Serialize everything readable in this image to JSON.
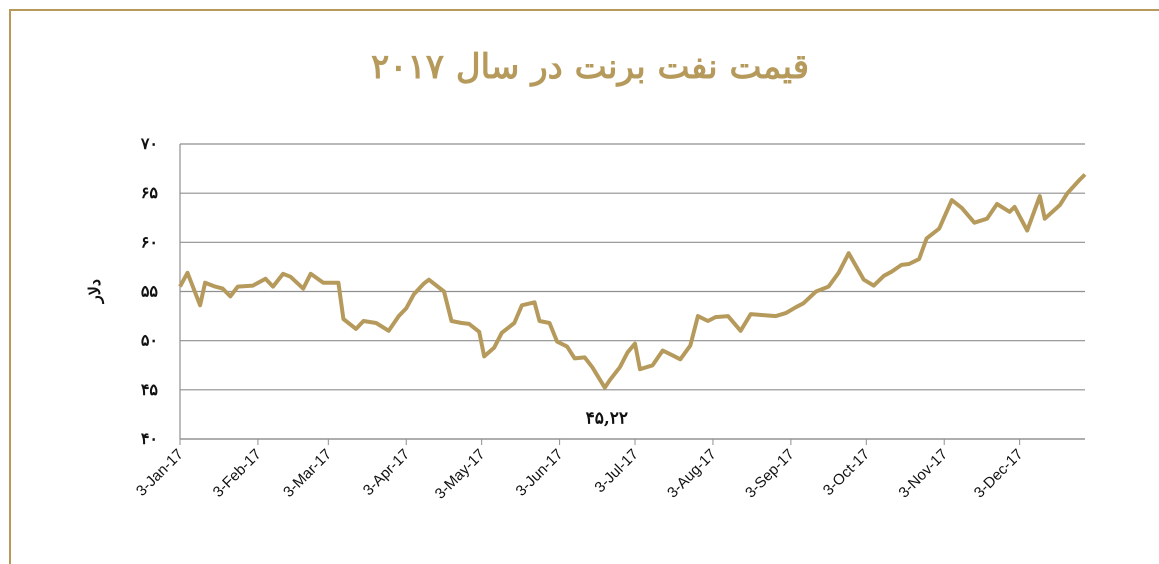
{
  "chart_data": {
    "type": "line",
    "title": "قیمت نفت برنت در سال ۲۰۱۷",
    "y_label": "دلار",
    "annotation": "۴۵,۲۲",
    "x": [
      "2017-01-03",
      "2017-01-06",
      "2017-01-11",
      "2017-01-13",
      "2017-01-17",
      "2017-01-20",
      "2017-01-23",
      "2017-01-26",
      "2017-02-01",
      "2017-02-06",
      "2017-02-09",
      "2017-02-13",
      "2017-02-16",
      "2017-02-21",
      "2017-02-24",
      "2017-03-01",
      "2017-03-07",
      "2017-03-09",
      "2017-03-14",
      "2017-03-17",
      "2017-03-22",
      "2017-03-27",
      "2017-03-31",
      "2017-04-03",
      "2017-04-06",
      "2017-04-10",
      "2017-04-12",
      "2017-04-18",
      "2017-04-21",
      "2017-04-25",
      "2017-04-28",
      "2017-05-02",
      "2017-05-04",
      "2017-05-08",
      "2017-05-11",
      "2017-05-16",
      "2017-05-19",
      "2017-05-24",
      "2017-05-26",
      "2017-05-30",
      "2017-06-02",
      "2017-06-06",
      "2017-06-09",
      "2017-06-13",
      "2017-06-16",
      "2017-06-21",
      "2017-06-23",
      "2017-06-27",
      "2017-06-30",
      "2017-07-03",
      "2017-07-05",
      "2017-07-10",
      "2017-07-14",
      "2017-07-18",
      "2017-07-21",
      "2017-07-25",
      "2017-07-28",
      "2017-08-01",
      "2017-08-04",
      "2017-08-09",
      "2017-08-14",
      "2017-08-18",
      "2017-08-23",
      "2017-08-28",
      "2017-09-01",
      "2017-09-05",
      "2017-09-08",
      "2017-09-13",
      "2017-09-18",
      "2017-09-22",
      "2017-09-26",
      "2017-10-02",
      "2017-10-06",
      "2017-10-10",
      "2017-10-13",
      "2017-10-17",
      "2017-10-20",
      "2017-10-24",
      "2017-10-27",
      "2017-11-01",
      "2017-11-06",
      "2017-11-10",
      "2017-11-15",
      "2017-11-20",
      "2017-11-24",
      "2017-11-29",
      "2017-12-01",
      "2017-12-06",
      "2017-12-11",
      "2017-12-13",
      "2017-12-19",
      "2017-12-22",
      "2017-12-27",
      "2017-12-29"
    ],
    "series": [
      {
        "name": "Brent",
        "color": "#b59a5c",
        "values": [
          55.5,
          56.9,
          53.6,
          55.9,
          55.5,
          55.3,
          54.5,
          55.5,
          55.6,
          56.3,
          55.5,
          56.8,
          56.5,
          55.3,
          56.8,
          55.9,
          55.9,
          52.2,
          51.2,
          52.0,
          51.8,
          51.0,
          52.5,
          53.3,
          54.7,
          55.8,
          56.2,
          55.0,
          52.0,
          51.8,
          51.7,
          50.9,
          48.4,
          49.3,
          50.8,
          51.8,
          53.6,
          53.9,
          52.0,
          51.8,
          49.9,
          49.4,
          48.2,
          48.3,
          47.3,
          45.22,
          46.0,
          47.3,
          48.8,
          49.7,
          47.1,
          47.5,
          49.0,
          48.5,
          48.1,
          49.5,
          52.5,
          52.0,
          52.4,
          52.5,
          51.0,
          52.7,
          52.6,
          52.5,
          52.8,
          53.4,
          53.8,
          55.0,
          55.5,
          56.9,
          58.9,
          56.2,
          55.6,
          56.6,
          57.0,
          57.7,
          57.8,
          58.3,
          60.4,
          61.4,
          64.3,
          63.5,
          62.0,
          62.4,
          63.9,
          63.1,
          63.6,
          61.2,
          64.7,
          62.4,
          63.8,
          65.0,
          66.4,
          66.9
        ]
      }
    ],
    "xlim": [
      "2017-01-03",
      "2017-12-29"
    ],
    "xticks": [
      {
        "value": "2017-01-03",
        "label": "3-Jan-17"
      },
      {
        "value": "2017-02-03",
        "label": "3-Feb-17"
      },
      {
        "value": "2017-03-03",
        "label": "3-Mar-17"
      },
      {
        "value": "2017-04-03",
        "label": "3-Apr-17"
      },
      {
        "value": "2017-05-03",
        "label": "3-May-17"
      },
      {
        "value": "2017-06-03",
        "label": "3-Jun-17"
      },
      {
        "value": "2017-07-03",
        "label": "3-Jul-17"
      },
      {
        "value": "2017-08-03",
        "label": "3-Aug-17"
      },
      {
        "value": "2017-09-03",
        "label": "3-Sep-17"
      },
      {
        "value": "2017-10-03",
        "label": "3-Oct-17"
      },
      {
        "value": "2017-11-03",
        "label": "3-Nov-17"
      },
      {
        "value": "2017-12-03",
        "label": "3-Dec-17"
      }
    ],
    "ylim": [
      40,
      70
    ],
    "yticks": [
      {
        "value": 40,
        "label": "۴۰"
      },
      {
        "value": 45,
        "label": "۴۵"
      },
      {
        "value": 50,
        "label": "۵۰"
      },
      {
        "value": 55,
        "label": "۵۵"
      },
      {
        "value": 60,
        "label": "۶۰"
      },
      {
        "value": 65,
        "label": "۶۵"
      },
      {
        "value": 70,
        "label": "۷۰"
      }
    ],
    "grid": true
  }
}
